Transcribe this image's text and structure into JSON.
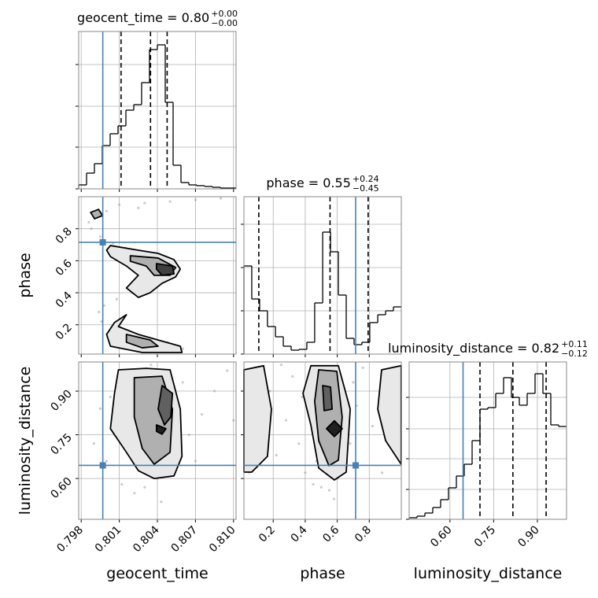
{
  "chart_data": {
    "type": "corner",
    "grid": true,
    "truth_color": "#4682b4",
    "point_color": "#9a9a9a",
    "parameters": [
      {
        "name": "geocent_time",
        "title": {
          "text": "geocent_time = 0.80",
          "upper": "+0.00",
          "lower": "−0.00"
        },
        "lim": [
          0.7978,
          0.8102
        ],
        "ticks": [
          0.798,
          0.801,
          0.804,
          0.807,
          {
            "value": 0.81,
            "label": "0.810"
          }
        ],
        "truth": 0.7997,
        "quantiles": [
          0.80114,
          0.80346,
          0.80477
        ],
        "hist": {
          "bins": [
            0.7978,
            0.79842,
            0.79904,
            0.79966,
            0.80028,
            0.8009,
            0.80152,
            0.80214,
            0.80276,
            0.80338,
            0.804,
            0.80462,
            0.80524,
            0.80586,
            0.80648,
            0.8071,
            0.80772,
            0.80834,
            0.80896,
            0.80958,
            0.8102
          ],
          "counts": [
            5,
            20,
            32,
            55,
            70,
            80,
            100,
            107,
            135,
            177,
            183,
            110,
            30,
            8,
            5,
            4,
            3,
            2,
            1,
            1
          ],
          "ylim": [
            0,
            200
          ],
          "yticks": [
            0,
            53,
            105,
            158
          ]
        }
      },
      {
        "name": "phase",
        "title": {
          "text": "phase = 0.55",
          "upper": "+0.24",
          "lower": "−0.45"
        },
        "lim": [
          0.017,
          1.0
        ],
        "ticks": [
          0.2,
          0.4,
          0.6,
          0.8
        ],
        "truth": 0.715,
        "quantiles": [
          0.11,
          0.555,
          0.793
        ],
        "hist": {
          "bins": [
            0.017,
            0.066,
            0.115,
            0.164,
            0.214,
            0.263,
            0.312,
            0.361,
            0.41,
            0.459,
            0.509,
            0.558,
            0.607,
            0.656,
            0.705,
            0.754,
            0.803,
            0.853,
            0.902,
            0.951,
            1.0
          ],
          "counts": [
            112,
            70,
            55,
            35,
            22,
            10,
            5,
            6,
            15,
            65,
            155,
            130,
            75,
            20,
            12,
            15,
            40,
            50,
            55,
            60
          ],
          "ylim": [
            0,
            200
          ],
          "yticks": [
            0,
            55,
            110,
            165
          ]
        }
      },
      {
        "name": "luminosity_distance",
        "title": {
          "text": "luminosity_distance = 0.82",
          "upper": "+0.11",
          "lower": "−0.12"
        },
        "lim": [
          0.46,
          1.0
        ],
        "ticks": [
          {
            "value": 0.6,
            "label": "0.60"
          },
          0.75,
          {
            "value": 0.9,
            "label": "0.90"
          }
        ],
        "truth": 0.645,
        "quantiles": [
          0.703,
          0.816,
          0.93
        ],
        "hist": {
          "bins": [
            0.46,
            0.487,
            0.514,
            0.541,
            0.568,
            0.595,
            0.622,
            0.649,
            0.676,
            0.703,
            0.73,
            0.757,
            0.784,
            0.811,
            0.838,
            0.865,
            0.892,
            0.919,
            0.946,
            0.973,
            1.0
          ],
          "counts": [
            2,
            4,
            8,
            15,
            25,
            40,
            55,
            70,
            100,
            140,
            142,
            160,
            180,
            155,
            145,
            160,
            185,
            160,
            120,
            118
          ],
          "ylim": [
            0,
            200
          ],
          "yticks": [
            0,
            38,
            77,
            115,
            155
          ]
        }
      }
    ],
    "pairs": [
      [
        {
          "points": {
            "x": [
              0.801,
              0.803,
              0.805,
              0.807,
              0.809,
              0.8025,
              0.8,
              0.799,
              0.7986,
              0.7988,
              0.7995,
              0.8005,
              0.8015,
              0.8035,
              0.8045,
              0.8055,
              0.804,
              0.8028,
              0.802,
              0.8008,
              0.7998,
              0.7994,
              0.7996,
              0.8004,
              0.8018,
              0.8032,
              0.8048,
              0.806,
              0.8038,
              0.8015
            ],
            "y": [
              0.95,
              0.96,
              0.97,
              0.98,
              0.99,
              0.93,
              0.91,
              0.88,
              0.84,
              0.8,
              0.75,
              0.71,
              0.68,
              0.64,
              0.58,
              0.53,
              0.5,
              0.45,
              0.4,
              0.36,
              0.32,
              0.28,
              0.22,
              0.18,
              0.15,
              0.12,
              0.09,
              0.05,
              0.03,
              0.06
            ]
          },
          "contours": [
            {
              "fill": "#e8e8e8",
              "x": [
                0.8003,
                0.8025,
                0.80406,
                0.80531,
                0.80581,
                0.80544,
                0.80437,
                0.80343,
                0.8025,
                0.80156,
                0.8025,
                0.80156,
                0.8003,
                0.8
              ],
              "y": [
                0.695,
                0.666,
                0.646,
                0.607,
                0.548,
                0.499,
                0.459,
                0.4,
                0.371,
                0.43,
                0.509,
                0.567,
                0.626,
                0.666
              ]
            },
            {
              "fill": "#b0b0b0",
              "x": [
                0.80187,
                0.80406,
                0.80544,
                0.805,
                0.80375,
                0.80312,
                0.80187
              ],
              "y": [
                0.631,
                0.617,
                0.558,
                0.509,
                0.509,
                0.567,
                0.597
              ]
            },
            {
              "fill": "#404040",
              "x": [
                0.80393,
                0.80519,
                0.80531,
                0.80437,
                0.80393
              ],
              "y": [
                0.582,
                0.567,
                0.518,
                0.509,
                0.548
              ]
            },
            {
              "fill": "#e8e8e8",
              "x": [
                0.80062,
                0.80156,
                0.80093,
                0.8025,
                0.80406,
                0.80581,
                0.80594,
                0.80281,
                0.8003,
                0.8
              ],
              "y": [
                0.214,
                0.263,
                0.189,
                0.14,
                0.105,
                0.066,
                0.027,
                0.027,
                0.066,
                0.14
              ]
            },
            {
              "fill": "#b0b0b0",
              "x": [
                0.80156,
                0.80343,
                0.80406,
                0.80281,
                0.80156
              ],
              "y": [
                0.14,
                0.105,
                0.066,
                0.056,
                0.091
              ]
            },
            {
              "fill": "#b0b0b0",
              "x": [
                0.79874,
                0.79937,
                0.79968,
                0.79905
              ],
              "y": [
                0.902,
                0.921,
                0.882,
                0.862
              ]
            }
          ]
        }
      ],
      [
        {
          "points": {
            "x": [
              0.799,
              0.8,
              0.8012,
              0.8022,
              0.803,
              0.804,
              0.805,
              0.8058,
              0.8065,
              0.8075,
              0.8085,
              0.8095,
              0.8003,
              0.8018,
              0.8035,
              0.8048,
              0.806,
              0.7995,
              0.801,
              0.8027,
              0.8043,
              0.8055,
              0.807,
              0.81
            ],
            "y": [
              0.72,
              0.66,
              0.58,
              0.55,
              0.57,
              0.6,
              0.62,
              0.68,
              0.75,
              0.82,
              0.9,
              0.97,
              0.88,
              0.95,
              0.99,
              0.7,
              0.93,
              0.84,
              0.78,
              0.64,
              0.52,
              0.85,
              0.66,
              0.8
            ]
          },
          "contours": [
            {
              "fill": "#e8e8e8",
              "x": [
                0.80093,
                0.80312,
                0.805,
                0.80581,
                0.80594,
                0.80531,
                0.80375,
                0.8025,
                0.80156,
                0.8003,
                0.80062
              ],
              "y": [
                0.973,
                0.978,
                0.973,
                0.838,
                0.676,
                0.609,
                0.6,
                0.627,
                0.69,
                0.771,
                0.892
              ]
            },
            {
              "fill": "#b0b0b0",
              "x": [
                0.80218,
                0.80437,
                0.80519,
                0.805,
                0.80375,
                0.80281,
                0.80218
              ],
              "y": [
                0.946,
                0.951,
                0.838,
                0.69,
                0.649,
                0.703,
                0.811
              ]
            },
            {
              "fill": "#606060",
              "x": [
                0.80437,
                0.80519,
                0.80506,
                0.80456,
                0.80406
              ],
              "y": [
                0.919,
                0.892,
                0.811,
                0.784,
                0.838
              ]
            },
            {
              "fill": "#202020",
              "x": [
                0.80393,
                0.80468,
                0.80437,
                0.80393
              ],
              "y": [
                0.784,
                0.771,
                0.752,
                0.762
              ]
            }
          ]
        },
        {
          "points": {
            "x": [
              0.05,
              0.1,
              0.18,
              0.22,
              0.28,
              0.32,
              0.36,
              0.4,
              0.45,
              0.5,
              0.55,
              0.6,
              0.64,
              0.68,
              0.72,
              0.76,
              0.82,
              0.88,
              0.95,
              0.25,
              0.38,
              0.47,
              0.58,
              0.7
            ],
            "y": [
              0.62,
              0.75,
              0.9,
              0.68,
              0.8,
              0.95,
              0.72,
              0.62,
              0.58,
              0.57,
              0.56,
              0.6,
              0.65,
              0.72,
              0.85,
              0.98,
              0.78,
              0.62,
              0.7,
              0.99,
              0.88,
              0.66,
              0.53,
              0.93
            ]
          },
          "contours": [
            {
              "fill": "#e8e8e8",
              "x": [
                0.435,
                0.607,
                0.681,
                0.656,
                0.582,
                0.484,
                0.435,
                0.386
              ],
              "y": [
                0.987,
                0.987,
                0.838,
                0.622,
                0.595,
                0.636,
                0.784,
                0.892
              ]
            },
            {
              "fill": "#b0b0b0",
              "x": [
                0.484,
                0.597,
                0.631,
                0.607,
                0.548,
                0.484,
                0.459
              ],
              "y": [
                0.973,
                0.968,
                0.811,
                0.663,
                0.644,
                0.73,
                0.865
              ]
            },
            {
              "fill": "#606060",
              "x": [
                0.509,
                0.558,
                0.568,
                0.518
              ],
              "y": [
                0.919,
                0.914,
                0.838,
                0.833
              ]
            },
            {
              "fill": "#202020",
              "x": [
                0.582,
                0.631,
                0.582,
                0.533
              ],
              "y": [
                0.798,
                0.771,
                0.744,
                0.771
              ]
            },
            {
              "fill": "#e8e8e8",
              "x": [
                0.017,
                0.14,
                0.189,
                0.164,
                0.066,
                0.017
              ],
              "y": [
                0.973,
                0.987,
                0.838,
                0.676,
                0.622,
                0.622
              ]
            },
            {
              "fill": "#e8e8e8",
              "x": [
                0.877,
                0.999,
                0.999,
                0.902,
                0.853
              ],
              "y": [
                0.973,
                0.987,
                0.649,
                0.73,
                0.838
              ]
            }
          ]
        }
      ]
    ]
  }
}
